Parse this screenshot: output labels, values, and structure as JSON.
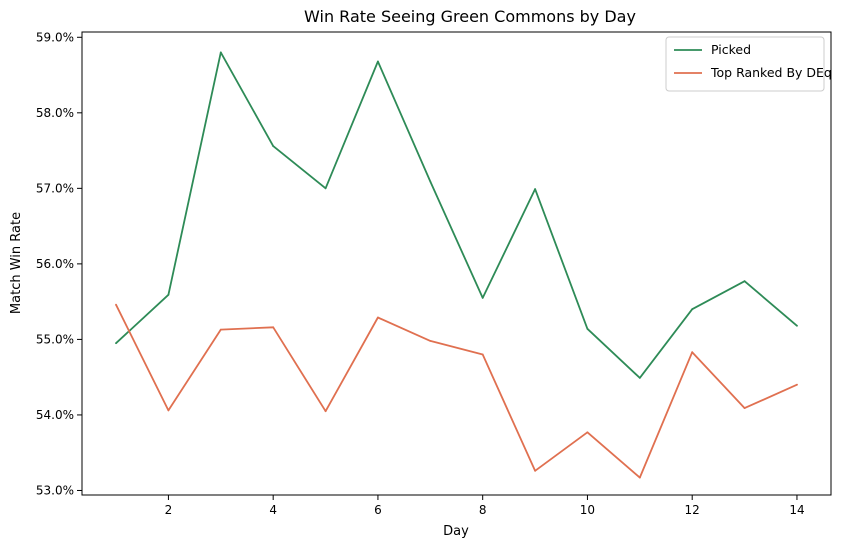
{
  "chart_data": {
    "type": "line",
    "title": "Win Rate Seeing Green Commons by Day",
    "xlabel": "Day",
    "ylabel": "Match Win Rate",
    "x": [
      1,
      2,
      3,
      4,
      5,
      6,
      7,
      8,
      9,
      10,
      11,
      12,
      13,
      14
    ],
    "xlim": [
      0.35,
      14.65
    ],
    "ylim": [
      52.94,
      59.07
    ],
    "xticks": [
      2,
      4,
      6,
      8,
      10,
      12,
      14
    ],
    "xtick_labels": [
      "2",
      "4",
      "6",
      "8",
      "10",
      "12",
      "14"
    ],
    "yticks": [
      53,
      54,
      55,
      56,
      57,
      58,
      59
    ],
    "ytick_labels": [
      "53.0%",
      "54.0%",
      "55.0%",
      "56.0%",
      "57.0%",
      "58.0%",
      "59.0%"
    ],
    "grid": false,
    "legend_position": "top-right",
    "series": [
      {
        "name": "Picked",
        "color": "#2e8b57",
        "values": [
          54.95,
          55.59,
          58.8,
          57.56,
          57.0,
          58.68,
          57.09,
          55.55,
          56.99,
          55.14,
          54.49,
          55.4,
          55.77,
          55.18
        ]
      },
      {
        "name": "Top Ranked By DEq",
        "color": "#e07050",
        "values": [
          55.46,
          54.06,
          55.13,
          55.16,
          54.05,
          55.29,
          54.98,
          54.8,
          53.26,
          53.77,
          53.17,
          54.83,
          54.09,
          54.4
        ]
      }
    ]
  }
}
